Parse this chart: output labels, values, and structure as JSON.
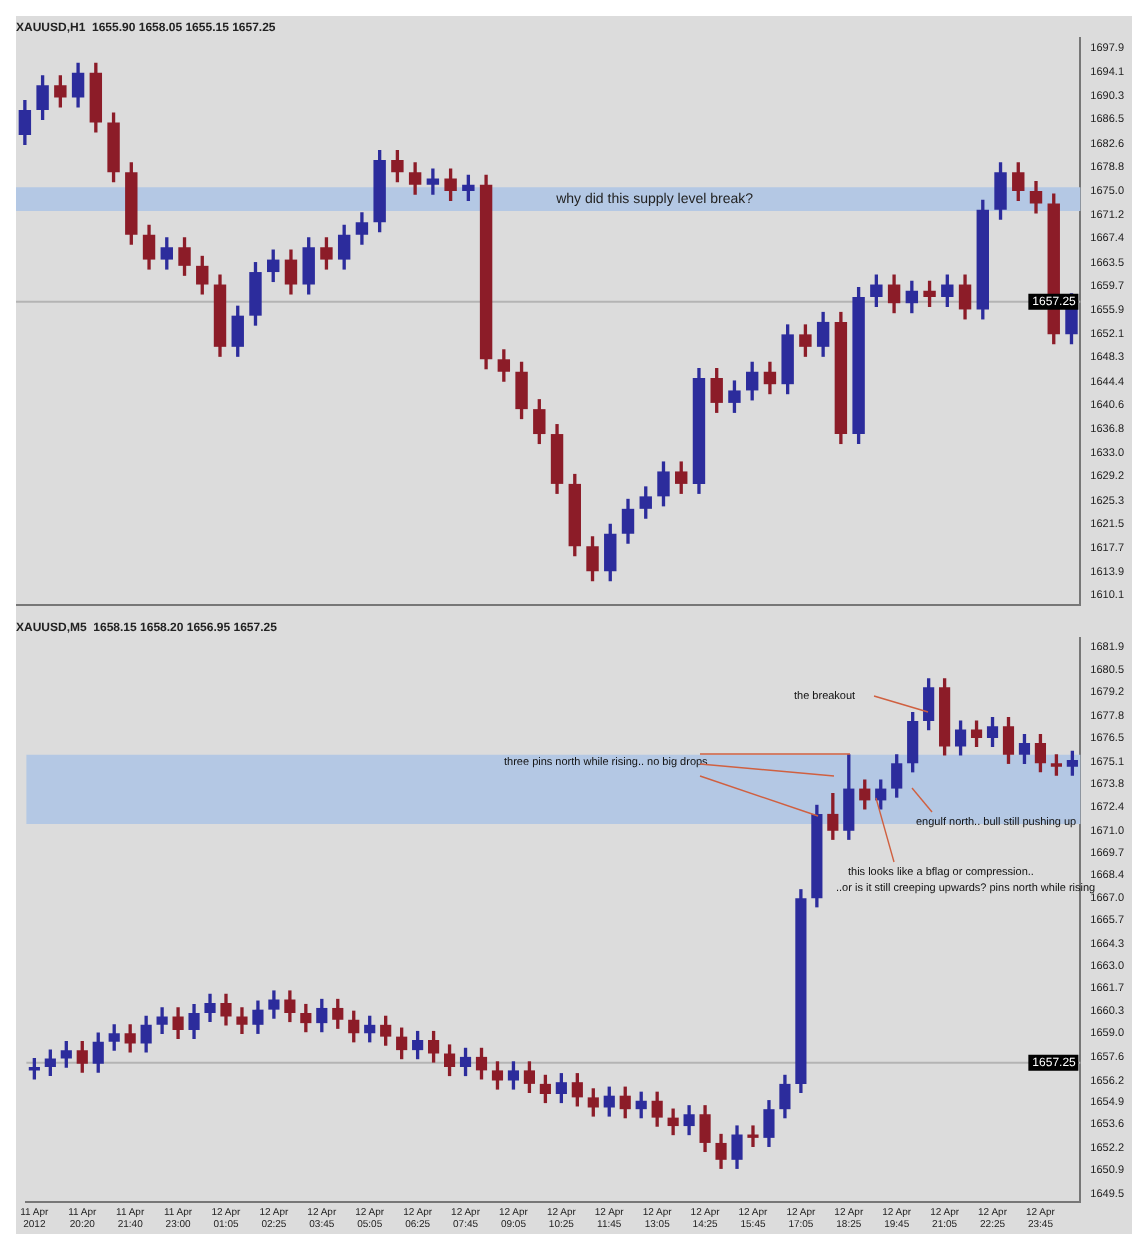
{
  "chart_data": [
    {
      "type": "candlestick",
      "title": "XAUUSD,H1  1655.90 1658.05 1655.15 1657.25",
      "tick_labels": "y",
      "grid": false,
      "legend": false,
      "categories": [
        null,
        null,
        null,
        null,
        null,
        null,
        null,
        null,
        null,
        null,
        null,
        null,
        null,
        null,
        null,
        null,
        null,
        null,
        null,
        null,
        null,
        null,
        null,
        null,
        null,
        null,
        null,
        null,
        null,
        null,
        null,
        null,
        null,
        null,
        null,
        null,
        null,
        null,
        null,
        null,
        null,
        null,
        null,
        null,
        null,
        null,
        null,
        null,
        null,
        null,
        null,
        null,
        null,
        null,
        null,
        null,
        null,
        null,
        null,
        null
      ],
      "ohlc": [
        [
          1684,
          1689.5,
          1682.5,
          1688
        ],
        [
          1688,
          1693.5,
          1686.5,
          1692
        ],
        [
          1692,
          1693.5,
          1688.5,
          1690
        ],
        [
          1690,
          1695.5,
          1688.5,
          1694
        ],
        [
          1694,
          1695.5,
          1684.5,
          1686
        ],
        [
          1686,
          1687.5,
          1676.5,
          1678
        ],
        [
          1678,
          1679.5,
          1666.5,
          1668
        ],
        [
          1668,
          1669.5,
          1662.5,
          1664
        ],
        [
          1664,
          1667.5,
          1662.5,
          1666
        ],
        [
          1666,
          1667.5,
          1661.5,
          1663
        ],
        [
          1663,
          1664.5,
          1658.5,
          1660
        ],
        [
          1660,
          1661.5,
          1648.5,
          1650
        ],
        [
          1650,
          1656.5,
          1648.5,
          1655
        ],
        [
          1655,
          1663.5,
          1653.5,
          1662
        ],
        [
          1662,
          1665.5,
          1660.5,
          1664
        ],
        [
          1664,
          1665.5,
          1658.5,
          1660
        ],
        [
          1660,
          1667.5,
          1658.5,
          1666
        ],
        [
          1666,
          1667.5,
          1662.5,
          1664
        ],
        [
          1664,
          1669.5,
          1662.5,
          1668
        ],
        [
          1668,
          1671.5,
          1666.5,
          1670
        ],
        [
          1670,
          1681.5,
          1668.5,
          1680
        ],
        [
          1680,
          1681.5,
          1676.5,
          1678
        ],
        [
          1678,
          1679.5,
          1674.5,
          1676
        ],
        [
          1676,
          1678.5,
          1674.5,
          1677
        ],
        [
          1677,
          1678.5,
          1673.5,
          1675
        ],
        [
          1675,
          1677.5,
          1673.5,
          1676
        ],
        [
          1676,
          1677.5,
          1646.5,
          1648
        ],
        [
          1648,
          1649.5,
          1644.5,
          1646
        ],
        [
          1646,
          1647.5,
          1638.5,
          1640
        ],
        [
          1640,
          1641.5,
          1634.5,
          1636
        ],
        [
          1636,
          1637.5,
          1626.5,
          1628
        ],
        [
          1628,
          1629.5,
          1616.5,
          1618
        ],
        [
          1618,
          1619.5,
          1612.5,
          1614
        ],
        [
          1614,
          1621.5,
          1612.5,
          1620
        ],
        [
          1620,
          1625.5,
          1618.5,
          1624
        ],
        [
          1624,
          1627.5,
          1622.5,
          1626
        ],
        [
          1626,
          1631.5,
          1624.5,
          1630
        ],
        [
          1630,
          1631.5,
          1626.5,
          1628
        ],
        [
          1628,
          1646.5,
          1626.5,
          1645
        ],
        [
          1645,
          1646.5,
          1639.5,
          1641
        ],
        [
          1641,
          1644.5,
          1639.5,
          1643
        ],
        [
          1643,
          1647.5,
          1641.5,
          1646
        ],
        [
          1646,
          1647.5,
          1642.5,
          1644
        ],
        [
          1644,
          1653.5,
          1642.5,
          1652
        ],
        [
          1652,
          1653.5,
          1648.5,
          1650
        ],
        [
          1650,
          1655.5,
          1648.5,
          1654
        ],
        [
          1654,
          1655.5,
          1634.5,
          1636
        ],
        [
          1636,
          1659.5,
          1634.5,
          1658
        ],
        [
          1658,
          1661.5,
          1656.5,
          1660
        ],
        [
          1660,
          1661.5,
          1655.5,
          1657
        ],
        [
          1657,
          1660.5,
          1655.5,
          1659
        ],
        [
          1659,
          1660.5,
          1656.5,
          1658
        ],
        [
          1658,
          1661.5,
          1656.5,
          1660
        ],
        [
          1660,
          1661.5,
          1654.5,
          1656
        ],
        [
          1656,
          1673.5,
          1654.5,
          1672
        ],
        [
          1672,
          1679.5,
          1670.5,
          1678
        ],
        [
          1678,
          1679.5,
          1673.5,
          1675
        ],
        [
          1675,
          1676.5,
          1671.5,
          1673
        ],
        [
          1673,
          1674.5,
          1650.5,
          1652
        ],
        [
          1652,
          1658.5,
          1650.5,
          1657.25
        ]
      ],
      "ylim": [
        1608.5,
        1699.5
      ],
      "yticks": [
        1610.1,
        1613.9,
        1617.7,
        1621.5,
        1625.3,
        1629.2,
        {
          "value": 1633,
          "label": "1633.0"
        },
        1636.8,
        1640.6,
        1644.4,
        1648.3,
        1652.1,
        1655.9,
        1659.7,
        1663.5,
        1667.4,
        1671.2,
        {
          "value": 1675,
          "label": "1675.0"
        },
        1678.8,
        1682.6,
        1686.5,
        1690.3,
        1694.1,
        1697.9
      ],
      "ref_lines": [
        {
          "axis": "y",
          "value": 1657.25,
          "label": "1657.25",
          "color": "#b4b4b4"
        }
      ],
      "bands": [
        {
          "axis": "y",
          "from": 1671.8,
          "to": 1675.6,
          "label": "why did this supply level break?",
          "color": "#b4c8e4"
        }
      ]
    },
    {
      "type": "candlestick",
      "title": "XAUUSD,M5  1658.15 1658.20 1656.95 1657.25",
      "grid": false,
      "legend": false,
      "categories": [
        "11 Apr 2012",
        null,
        null,
        "11 Apr 20:20",
        null,
        null,
        "11 Apr 21:40",
        null,
        null,
        "11 Apr 23:00",
        null,
        null,
        "12 Apr 01:05",
        null,
        null,
        "12 Apr 02:25",
        null,
        null,
        "12 Apr 03:45",
        null,
        null,
        "12 Apr 05:05",
        null,
        null,
        "12 Apr 06:25",
        null,
        null,
        "12 Apr 07:45",
        null,
        null,
        "12 Apr 09:05",
        null,
        null,
        "12 Apr 10:25",
        null,
        null,
        "12 Apr 11:45",
        null,
        null,
        "12 Apr 13:05",
        null,
        null,
        "12 Apr 14:25",
        null,
        null,
        "12 Apr 15:45",
        null,
        null,
        "12 Apr 17:05",
        null,
        null,
        "12 Apr 18:25",
        null,
        null,
        "12 Apr 19:45",
        null,
        null,
        "12 Apr 21:05",
        null,
        null,
        "12 Apr 22:25",
        null,
        null,
        "12 Apr 23:45",
        null,
        null
      ],
      "ohlc": [
        [
          1656.8,
          1657.5,
          1656.3,
          1657
        ],
        [
          1657,
          1658,
          1656.5,
          1657.5
        ],
        [
          1657.5,
          1658.5,
          1657,
          1658
        ],
        [
          1658,
          1658.5,
          1656.7,
          1657.2
        ],
        [
          1657.2,
          1659,
          1656.7,
          1658.5
        ],
        [
          1658.5,
          1659.5,
          1658,
          1659
        ],
        [
          1659,
          1659.5,
          1657.9,
          1658.4
        ],
        [
          1658.4,
          1660,
          1657.9,
          1659.5
        ],
        [
          1659.5,
          1660.5,
          1659,
          1660
        ],
        [
          1660,
          1660.5,
          1658.7,
          1659.2
        ],
        [
          1659.2,
          1660.7,
          1658.7,
          1660.2
        ],
        [
          1660.2,
          1661.3,
          1659.7,
          1660.8
        ],
        [
          1660.8,
          1661.3,
          1659.5,
          1660
        ],
        [
          1660,
          1660.5,
          1659,
          1659.5
        ],
        [
          1659.5,
          1660.9,
          1659,
          1660.4
        ],
        [
          1660.4,
          1661.5,
          1659.9,
          1661
        ],
        [
          1661,
          1661.5,
          1659.7,
          1660.2
        ],
        [
          1660.2,
          1660.7,
          1659.1,
          1659.6
        ],
        [
          1659.6,
          1661,
          1659.1,
          1660.5
        ],
        [
          1660.5,
          1661,
          1659.3,
          1659.8
        ],
        [
          1659.8,
          1660.3,
          1658.5,
          1659
        ],
        [
          1659,
          1660,
          1658.5,
          1659.5
        ],
        [
          1659.5,
          1660,
          1658.3,
          1658.8
        ],
        [
          1658.8,
          1659.3,
          1657.5,
          1658
        ],
        [
          1658,
          1659.1,
          1657.5,
          1658.6
        ],
        [
          1658.6,
          1659.1,
          1657.3,
          1657.8
        ],
        [
          1657.8,
          1658.3,
          1656.5,
          1657
        ],
        [
          1657,
          1658.1,
          1656.5,
          1657.6
        ],
        [
          1657.6,
          1658.1,
          1656.3,
          1656.8
        ],
        [
          1656.8,
          1657.3,
          1655.7,
          1656.2
        ],
        [
          1656.2,
          1657.3,
          1655.7,
          1656.8
        ],
        [
          1656.8,
          1657.3,
          1655.5,
          1656
        ],
        [
          1656,
          1656.5,
          1654.9,
          1655.4
        ],
        [
          1655.4,
          1656.6,
          1654.9,
          1656.1
        ],
        [
          1656.1,
          1656.6,
          1654.7,
          1655.2
        ],
        [
          1655.2,
          1655.7,
          1654.1,
          1654.6
        ],
        [
          1654.6,
          1655.8,
          1654.1,
          1655.3
        ],
        [
          1655.3,
          1655.8,
          1654,
          1654.5
        ],
        [
          1654.5,
          1655.5,
          1654,
          1655
        ],
        [
          1655,
          1655.5,
          1653.5,
          1654
        ],
        [
          1654,
          1654.5,
          1653,
          1653.5
        ],
        [
          1653.5,
          1654.7,
          1653,
          1654.2
        ],
        [
          1654.2,
          1654.7,
          1652,
          1652.5
        ],
        [
          1652.5,
          1653,
          1651,
          1651.5
        ],
        [
          1651.5,
          1653.5,
          1651,
          1653
        ],
        [
          1653,
          1653.5,
          1652.3,
          1652.8
        ],
        [
          1652.8,
          1655,
          1652.3,
          1654.5
        ],
        [
          1654.5,
          1656.5,
          1654,
          1656
        ],
        [
          1656,
          1667.5,
          1655.5,
          1667
        ],
        [
          1667,
          1672.5,
          1666.5,
          1672
        ],
        [
          1672,
          1673.2,
          1670.5,
          1671
        ],
        [
          1671,
          1675.5,
          1670.5,
          1673.5
        ],
        [
          1673.5,
          1674,
          1672.3,
          1672.8
        ],
        [
          1672.8,
          1674,
          1672.3,
          1673.5
        ],
        [
          1673.5,
          1675.5,
          1673,
          1675
        ],
        [
          1675,
          1678,
          1674.5,
          1677.5
        ],
        [
          1677.5,
          1680,
          1677,
          1679.5
        ],
        [
          1679.5,
          1680,
          1675.5,
          1676
        ],
        [
          1676,
          1677.5,
          1675.5,
          1677
        ],
        [
          1677,
          1677.5,
          1676,
          1676.5
        ],
        [
          1676.5,
          1677.7,
          1676,
          1677.2
        ],
        [
          1677.2,
          1677.7,
          1675,
          1675.5
        ],
        [
          1675.5,
          1676.7,
          1675,
          1676.2
        ],
        [
          1676.2,
          1676.7,
          1674.5,
          1675
        ],
        [
          1675,
          1675.5,
          1674.3,
          1674.8
        ],
        [
          1674.8,
          1675.7,
          1674.3,
          1675.2
        ]
      ],
      "ylim": [
        1649,
        1682.4
      ],
      "yticks": [
        1649.5,
        1650.9,
        1652.2,
        1653.6,
        1654.9,
        1656.2,
        1657.6,
        {
          "value": 1659,
          "label": "1659.0"
        },
        1660.3,
        1661.7,
        {
          "value": 1663,
          "label": "1663.0"
        },
        1664.3,
        1665.7,
        {
          "value": 1667,
          "label": "1667.0"
        },
        1668.4,
        1669.7,
        {
          "value": 1671,
          "label": "1671.0"
        },
        1672.4,
        1673.8,
        1675.1,
        1676.5,
        1677.8,
        1679.2,
        1680.5,
        1681.9
      ],
      "ref_lines": [
        {
          "axis": "y",
          "value": 1657.25,
          "label": "1657.25",
          "color": "#b4b4b4"
        }
      ],
      "bands": [
        {
          "axis": "y",
          "from": 1671.4,
          "to": 1675.5,
          "color": "#b4c8e4"
        }
      ],
      "annotations": [
        "the breakout",
        {
          "text": "three pins north while rising.. no big drops",
          "y": 1675.5
        },
        "engulf north.. bull still pushing up",
        "this looks like a bflag or compression..",
        "..or is it still creeping upwards? pins north while rising"
      ]
    }
  ]
}
